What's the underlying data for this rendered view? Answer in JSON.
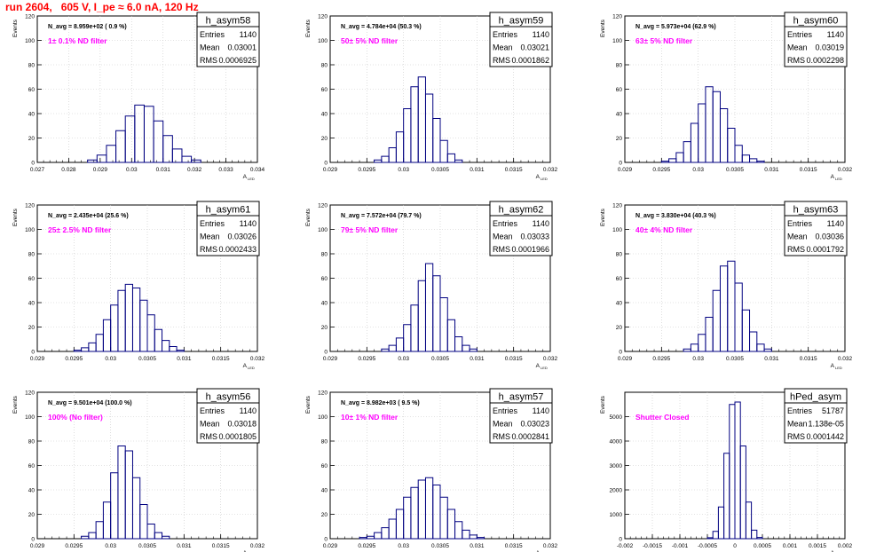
{
  "page": {
    "title": "run 2604,   605 V, I_pe ≈ 6.0 nA, 120 Hz"
  },
  "colors": {
    "title": "#ff0000",
    "annotation": "#ff00ff",
    "histogram": "#000080",
    "frame": "#000000",
    "grid": "#c8c8c8"
  },
  "chart_data": [
    {
      "type": "bar",
      "name": "h_asym58",
      "navg": "N_avg = 8.959e+02 ( 0.9 %)",
      "filter": "1± 0.1% ND filter",
      "stats": {
        "entries": "1140",
        "mean": "0.03001",
        "rms": "0.0006925"
      },
      "ylabel": "Events",
      "xlabel": "A",
      "xlabel_sub": "LED",
      "xlim": [
        0.027,
        0.034
      ],
      "ylim": [
        0,
        120
      ],
      "xticks": [
        "0.027",
        "0.028",
        "0.029",
        "0.03",
        "0.031",
        "0.032",
        "0.033",
        "0.034"
      ],
      "yticks": [
        "0",
        "20",
        "40",
        "60",
        "80",
        "100",
        "120"
      ],
      "x": [
        0.02875,
        0.02905,
        0.02935,
        0.02965,
        0.02995,
        0.03025,
        0.03055,
        0.03085,
        0.03115,
        0.03145,
        0.03175,
        0.03205
      ],
      "values": [
        2,
        6,
        14,
        26,
        38,
        47,
        46,
        34,
        22,
        11,
        5,
        2
      ]
    },
    {
      "type": "bar",
      "name": "h_asym59",
      "navg": "N_avg = 4.784e+04 (50.3 %)",
      "filter": "50± 5% ND filter",
      "stats": {
        "entries": "1140",
        "mean": "0.03021",
        "rms": "0.0001862"
      },
      "ylabel": "Events",
      "xlabel": "A",
      "xlabel_sub": "LED",
      "xlim": [
        0.029,
        0.032
      ],
      "ylim": [
        0,
        120
      ],
      "xticks": [
        "0.029",
        "0.0295",
        "0.03",
        "0.0305",
        "0.031",
        "0.0315",
        "0.032"
      ],
      "yticks": [
        "0",
        "20",
        "40",
        "60",
        "80",
        "100",
        "120"
      ],
      "x": [
        0.02965,
        0.02975,
        0.02985,
        0.02995,
        0.03005,
        0.03015,
        0.03025,
        0.03035,
        0.03045,
        0.03055,
        0.03065,
        0.03075
      ],
      "values": [
        2,
        5,
        12,
        25,
        44,
        62,
        70,
        56,
        36,
        18,
        7,
        2
      ]
    },
    {
      "type": "bar",
      "name": "h_asym60",
      "navg": "N_avg = 5.973e+04 (62.9 %)",
      "filter": "63± 5% ND filter",
      "stats": {
        "entries": "1140",
        "mean": "0.03019",
        "rms": "0.0002298"
      },
      "ylabel": "Events",
      "xlabel": "A",
      "xlabel_sub": "LED",
      "xlim": [
        0.029,
        0.032
      ],
      "ylim": [
        0,
        120
      ],
      "xticks": [
        "0.029",
        "0.0295",
        "0.03",
        "0.0305",
        "0.031",
        "0.0315",
        "0.032"
      ],
      "yticks": [
        "0",
        "20",
        "40",
        "60",
        "80",
        "100",
        "120"
      ],
      "x": [
        0.02955,
        0.02965,
        0.02975,
        0.02985,
        0.02995,
        0.03005,
        0.03015,
        0.03025,
        0.03035,
        0.03045,
        0.03055,
        0.03065,
        0.03075,
        0.03085
      ],
      "values": [
        1,
        3,
        8,
        17,
        32,
        48,
        62,
        58,
        44,
        28,
        14,
        6,
        3,
        1
      ]
    },
    {
      "type": "bar",
      "name": "h_asym61",
      "navg": "N_avg = 2.435e+04 (25.6 %)",
      "filter": "25± 2.5% ND filter",
      "stats": {
        "entries": "1140",
        "mean": "0.03026",
        "rms": "0.0002433"
      },
      "ylabel": "Events",
      "xlabel": "A",
      "xlabel_sub": "LED",
      "xlim": [
        0.029,
        0.032
      ],
      "ylim": [
        0,
        120
      ],
      "xticks": [
        "0.029",
        "0.0295",
        "0.03",
        "0.0305",
        "0.031",
        "0.0315",
        "0.032"
      ],
      "yticks": [
        "0",
        "20",
        "40",
        "60",
        "80",
        "100",
        "120"
      ],
      "x": [
        0.02955,
        0.02965,
        0.02975,
        0.02985,
        0.02995,
        0.03005,
        0.03015,
        0.03025,
        0.03035,
        0.03045,
        0.03055,
        0.03065,
        0.03075,
        0.03085,
        0.03095
      ],
      "values": [
        1,
        3,
        7,
        14,
        26,
        38,
        50,
        55,
        52,
        42,
        30,
        18,
        9,
        4,
        1
      ]
    },
    {
      "type": "bar",
      "name": "h_asym62",
      "navg": "N_avg = 7.572e+04 (79.7 %)",
      "filter": "79± 5% ND filter",
      "stats": {
        "entries": "1140",
        "mean": "0.03033",
        "rms": "0.0001966"
      },
      "ylabel": "Events",
      "xlabel": "A",
      "xlabel_sub": "LED",
      "xlim": [
        0.029,
        0.032
      ],
      "ylim": [
        0,
        120
      ],
      "xticks": [
        "0.029",
        "0.0295",
        "0.03",
        "0.0305",
        "0.031",
        "0.0315",
        "0.032"
      ],
      "yticks": [
        "0",
        "20",
        "40",
        "60",
        "80",
        "100",
        "120"
      ],
      "x": [
        0.02975,
        0.02985,
        0.02995,
        0.03005,
        0.03015,
        0.03025,
        0.03035,
        0.03045,
        0.03055,
        0.03065,
        0.03075,
        0.03085,
        0.03095
      ],
      "values": [
        2,
        5,
        11,
        22,
        38,
        58,
        72,
        62,
        44,
        26,
        12,
        5,
        2
      ]
    },
    {
      "type": "bar",
      "name": "h_asym63",
      "navg": "N_avg = 3.830e+04 (40.3 %)",
      "filter": "40± 4% ND filter",
      "stats": {
        "entries": "1140",
        "mean": "0.03036",
        "rms": "0.0001792"
      },
      "ylabel": "Events",
      "xlabel": "A",
      "xlabel_sub": "LED",
      "xlim": [
        0.029,
        0.032
      ],
      "ylim": [
        0,
        120
      ],
      "xticks": [
        "0.029",
        "0.0295",
        "0.03",
        "0.0305",
        "0.031",
        "0.0315",
        "0.032"
      ],
      "yticks": [
        "0",
        "20",
        "40",
        "60",
        "80",
        "100",
        "120"
      ],
      "x": [
        0.02985,
        0.02995,
        0.03005,
        0.03015,
        0.03025,
        0.03035,
        0.03045,
        0.03055,
        0.03065,
        0.03075,
        0.03085,
        0.03095
      ],
      "values": [
        2,
        6,
        14,
        28,
        50,
        70,
        74,
        56,
        34,
        16,
        6,
        2
      ]
    },
    {
      "type": "bar",
      "name": "h_asym56",
      "navg": "N_avg = 9.501e+04 (100.0 %)",
      "filter": "100% (No filter)",
      "stats": {
        "entries": "1140",
        "mean": "0.03018",
        "rms": "0.0001805"
      },
      "ylabel": "Events",
      "xlabel": "A",
      "xlabel_sub": "LED",
      "xlim": [
        0.029,
        0.032
      ],
      "ylim": [
        0,
        120
      ],
      "xticks": [
        "0.029",
        "0.0295",
        "0.03",
        "0.0305",
        "0.031",
        "0.0315",
        "0.032"
      ],
      "yticks": [
        "0",
        "20",
        "40",
        "60",
        "80",
        "100",
        "120"
      ],
      "x": [
        0.02965,
        0.02975,
        0.02985,
        0.02995,
        0.03005,
        0.03015,
        0.03025,
        0.03035,
        0.03045,
        0.03055,
        0.03065,
        0.03075
      ],
      "values": [
        2,
        5,
        14,
        30,
        54,
        76,
        72,
        50,
        28,
        12,
        5,
        2
      ]
    },
    {
      "type": "bar",
      "name": "h_asym57",
      "navg": "N_avg = 8.982e+03 ( 9.5 %)",
      "filter": "10± 1% ND filter",
      "stats": {
        "entries": "1140",
        "mean": "0.03023",
        "rms": "0.0002841"
      },
      "ylabel": "Events",
      "xlabel": "A",
      "xlabel_sub": "LED",
      "xlim": [
        0.029,
        0.032
      ],
      "ylim": [
        0,
        120
      ],
      "xticks": [
        "0.029",
        "0.0295",
        "0.03",
        "0.0305",
        "0.031",
        "0.0315",
        "0.032"
      ],
      "yticks": [
        "0",
        "20",
        "40",
        "60",
        "80",
        "100",
        "120"
      ],
      "x": [
        0.02945,
        0.02955,
        0.02965,
        0.02975,
        0.02985,
        0.02995,
        0.03005,
        0.03015,
        0.03025,
        0.03035,
        0.03045,
        0.03055,
        0.03065,
        0.03075,
        0.03085,
        0.03095,
        0.03105
      ],
      "values": [
        1,
        2,
        5,
        9,
        16,
        24,
        34,
        42,
        48,
        50,
        44,
        34,
        24,
        14,
        7,
        3,
        1
      ]
    },
    {
      "type": "bar",
      "name": "hPed_asym",
      "navg": "",
      "filter": "Shutter Closed",
      "stats": {
        "entries": "51787",
        "mean": "1.138e-05",
        "rms": "0.0001442"
      },
      "ylabel": "Events",
      "xlabel": "A",
      "xlabel_sub": "LED",
      "xlim": [
        -0.002,
        0.002
      ],
      "ylim": [
        0,
        6000
      ],
      "xticks": [
        "-0.002",
        "-0.0015",
        "-0.001",
        "-0.0005",
        "0",
        "0.0005",
        "0.001",
        "0.0015",
        "0.002"
      ],
      "yticks": [
        "0",
        "1000",
        "2000",
        "3000",
        "4000",
        "5000"
      ],
      "x": [
        -0.00045,
        -0.00035,
        -0.00025,
        -0.00015,
        -5e-05,
        5e-05,
        0.00015,
        0.00025,
        0.00035,
        0.00045
      ],
      "values": [
        40,
        300,
        1300,
        3500,
        5500,
        5600,
        3800,
        1500,
        350,
        50
      ]
    }
  ]
}
